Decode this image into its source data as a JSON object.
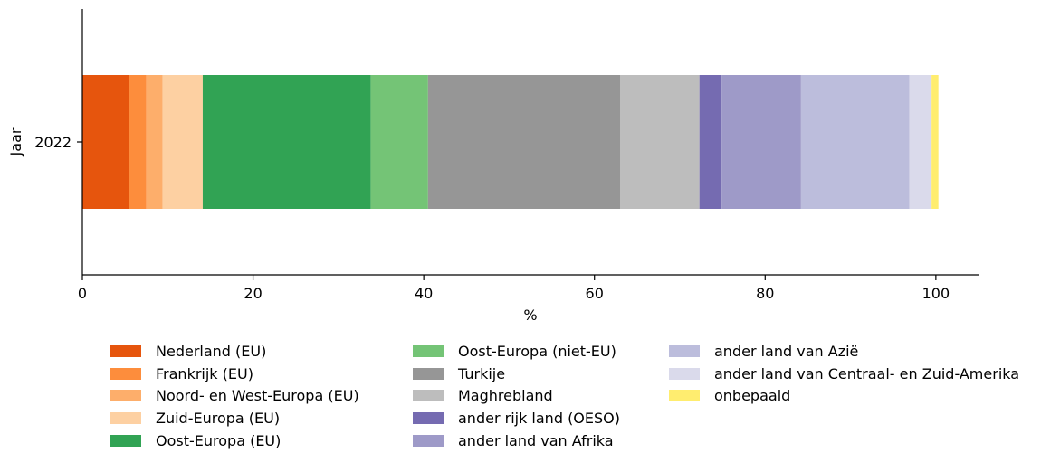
{
  "chart_data": {
    "type": "bar",
    "orientation": "horizontal",
    "stacked": true,
    "categories": [
      "2022"
    ],
    "xlabel": "%",
    "ylabel": "Jaar",
    "xlim": [
      0,
      105
    ],
    "xticks": [
      0,
      20,
      40,
      60,
      80,
      100
    ],
    "grid": false,
    "legend_position": "bottom",
    "series": [
      {
        "name": "Nederland (EU)",
        "values": [
          5.5
        ],
        "color": "#e6550d"
      },
      {
        "name": "Frankrijk (EU)",
        "values": [
          2.0
        ],
        "color": "#fd8d3c"
      },
      {
        "name": "Noord- en West-Europa (EU)",
        "values": [
          1.9
        ],
        "color": "#fdae6b"
      },
      {
        "name": "Zuid-Europa (EU)",
        "values": [
          4.7
        ],
        "color": "#fdd0a2"
      },
      {
        "name": "Oost-Europa (EU)",
        "values": [
          19.7
        ],
        "color": "#31a354"
      },
      {
        "name": "Oost-Europa (niet-EU)",
        "values": [
          6.7
        ],
        "color": "#74c476"
      },
      {
        "name": "Turkije",
        "values": [
          22.5
        ],
        "color": "#969696"
      },
      {
        "name": "Maghrebland",
        "values": [
          9.3
        ],
        "color": "#bdbdbd"
      },
      {
        "name": "ander rijk land (OESO)",
        "values": [
          2.6
        ],
        "color": "#756bb1"
      },
      {
        "name": "ander land van Afrika",
        "values": [
          9.3
        ],
        "color": "#9e9ac8"
      },
      {
        "name": "ander land van Azië",
        "values": [
          12.7
        ],
        "color": "#bcbddc"
      },
      {
        "name": "ander land van Centraal- en Zuid-Amerika",
        "values": [
          2.6
        ],
        "color": "#dadaeb"
      },
      {
        "name": "onbepaald",
        "values": [
          0.8
        ],
        "color": "#ffed6f"
      }
    ]
  }
}
